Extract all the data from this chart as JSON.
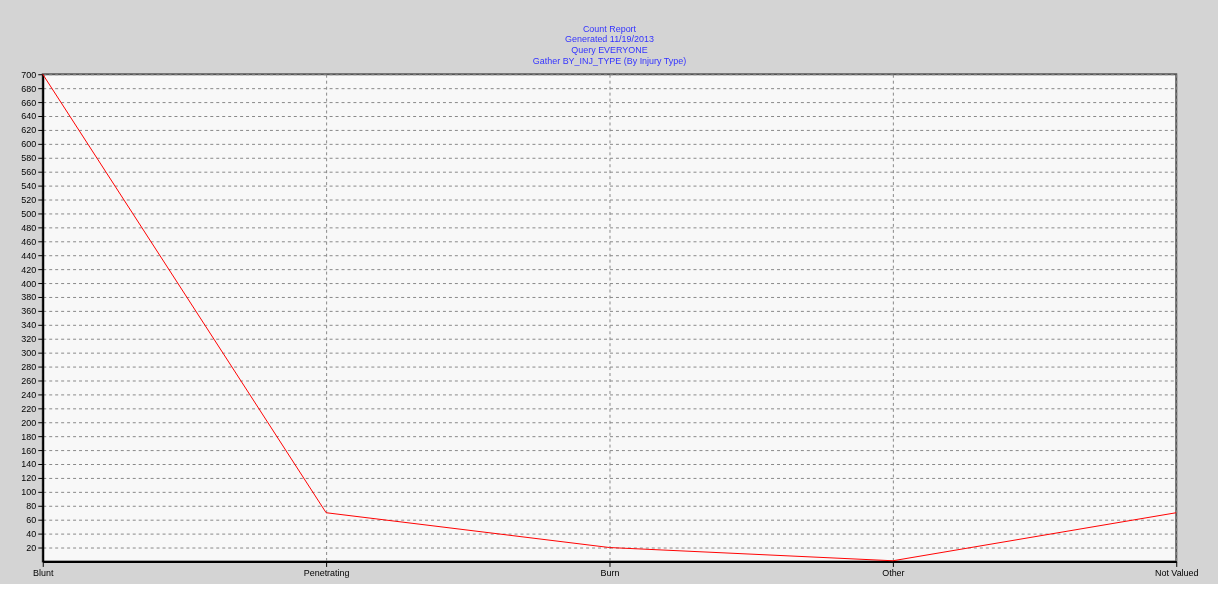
{
  "chart_data": {
    "type": "line",
    "title": "Count Report",
    "subtitle": "Generated 11/19/2013\nQuery EVERYONE\nGather BY_INJ_TYPE (By Injury Type)",
    "categories": [
      "Blunt",
      "Penetrating",
      "Burn",
      "Other",
      "Not Valued"
    ],
    "series": [
      {
        "color": "#ff0000",
        "values": [
          700,
          70,
          20,
          1,
          70
        ]
      }
    ],
    "ylim": [
      0,
      700
    ],
    "yticks": [
      20,
      40,
      60,
      80,
      100,
      120,
      140,
      160,
      180,
      200,
      220,
      240,
      260,
      280,
      300,
      320,
      340,
      360,
      380,
      400,
      420,
      440,
      460,
      480,
      500,
      520,
      540,
      560,
      580,
      600,
      620,
      640,
      660,
      680,
      700
    ],
    "grid": true,
    "line_style": "solid",
    "marker": "none"
  }
}
